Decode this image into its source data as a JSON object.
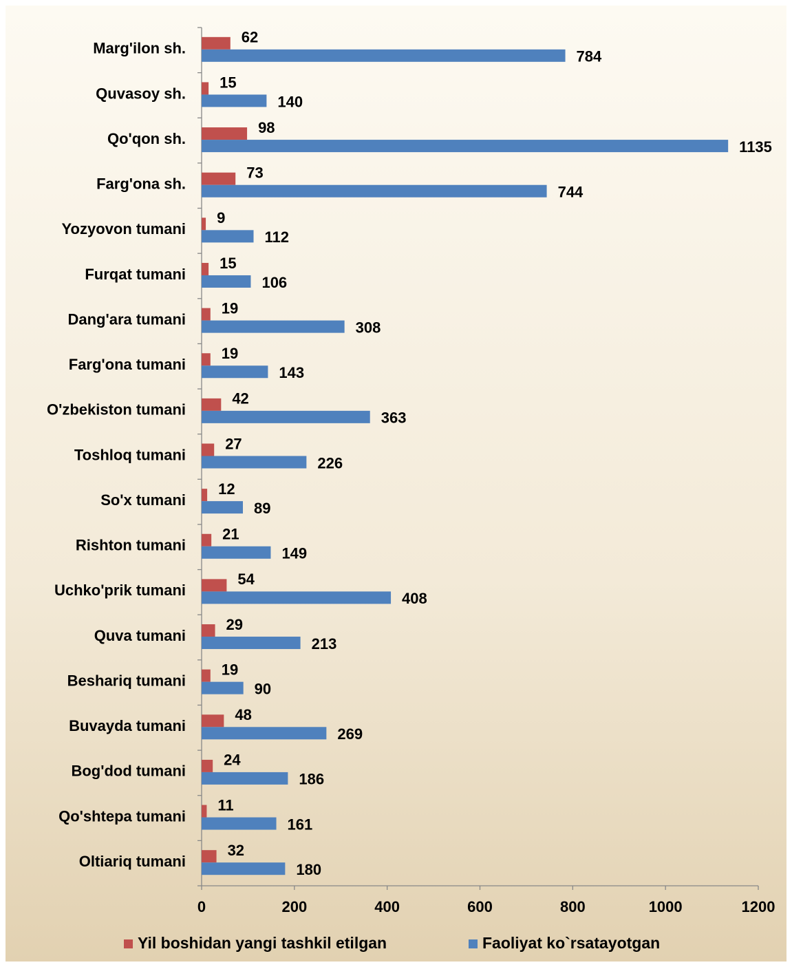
{
  "chart_data": {
    "type": "bar",
    "orientation": "horizontal",
    "categories": [
      "Marg'ilon sh.",
      "Quvasoy sh.",
      "Qo'qon sh.",
      "Farg'ona sh.",
      "Yozyovon tumani",
      "Furqat tumani",
      "Dang'ara tumani",
      "Farg'ona tumani",
      "O'zbekiston tumani",
      "Toshloq tumani",
      "So'x tumani",
      "Rishton tumani",
      "Uchko'prik tumani",
      "Quva tumani",
      "Beshariq tumani",
      "Buvayda tumani",
      "Bog'dod tumani",
      "Qo'shtepa tumani",
      "Oltiariq tumani"
    ],
    "series": [
      {
        "name": "Yil boshidan yangi tashkil etilgan",
        "color": "#c0504d",
        "values": [
          62,
          15,
          98,
          73,
          9,
          15,
          19,
          19,
          42,
          27,
          12,
          21,
          54,
          29,
          19,
          48,
          24,
          11,
          32
        ]
      },
      {
        "name": "Faoliyat ko`rsatayotgan",
        "color": "#4f81bd",
        "values": [
          784,
          140,
          1135,
          744,
          112,
          106,
          308,
          143,
          363,
          226,
          89,
          149,
          408,
          213,
          90,
          269,
          186,
          161,
          180
        ]
      }
    ],
    "xlim": [
      0,
      1200
    ],
    "xticks": [
      0,
      200,
      400,
      600,
      800,
      1000,
      1200
    ],
    "legend": "bottom"
  }
}
